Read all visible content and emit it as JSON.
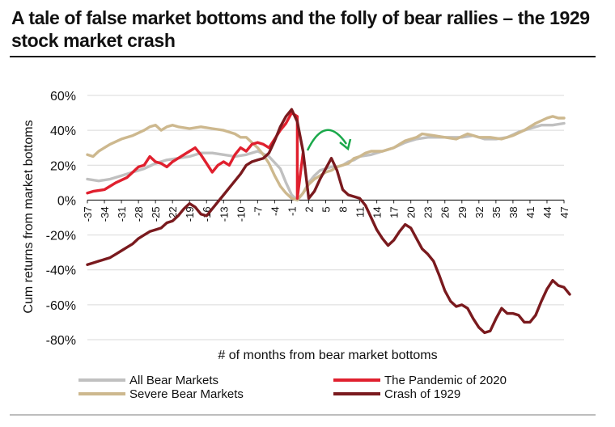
{
  "title": "A tale of false market bottoms and the folly of bear rallies – the 1929 stock market crash",
  "chart_data": {
    "type": "line",
    "title": "A tale of false market bottoms and the folly of bear rallies – the 1929 stock market crash",
    "xlabel": "# of months from bear market  bottoms",
    "ylabel": "Cum returns  from market bottoms",
    "xlim": [
      -37,
      47
    ],
    "ylim": [
      -80,
      60
    ],
    "x_ticks": [
      -37,
      -34,
      -31,
      -28,
      -25,
      -22,
      -19,
      -16,
      -13,
      -10,
      -7,
      -4,
      -1,
      2,
      5,
      8,
      11,
      14,
      17,
      20,
      23,
      26,
      29,
      32,
      35,
      38,
      41,
      44,
      47
    ],
    "y_ticks": [
      -80,
      -60,
      -40,
      -20,
      0,
      20,
      40,
      60
    ],
    "y_tick_labels": [
      "-80%",
      "-60%",
      "-40%",
      "-20%",
      "0%",
      "20%",
      "40%",
      "60%"
    ],
    "grid": "horizontal",
    "legend_position": "bottom",
    "series": [
      {
        "name": "All Bear Markets",
        "color": "#c0c0c0",
        "points": [
          [
            -37,
            12
          ],
          [
            -35,
            11
          ],
          [
            -33,
            12
          ],
          [
            -31,
            14
          ],
          [
            -29,
            16
          ],
          [
            -27,
            18
          ],
          [
            -25,
            21
          ],
          [
            -23,
            23
          ],
          [
            -21,
            24
          ],
          [
            -19,
            25
          ],
          [
            -17,
            27
          ],
          [
            -15,
            27
          ],
          [
            -13,
            26
          ],
          [
            -11,
            25
          ],
          [
            -9,
            26
          ],
          [
            -7,
            28
          ],
          [
            -5,
            25
          ],
          [
            -3,
            18
          ],
          [
            -2,
            10
          ],
          [
            -1,
            3
          ],
          [
            0,
            0
          ],
          [
            1,
            4
          ],
          [
            2,
            10
          ],
          [
            3,
            14
          ],
          [
            4,
            17
          ],
          [
            5,
            18
          ],
          [
            6,
            19
          ],
          [
            7,
            19
          ],
          [
            8,
            20
          ],
          [
            9,
            22
          ],
          [
            10,
            23
          ],
          [
            11,
            25
          ],
          [
            13,
            26
          ],
          [
            15,
            28
          ],
          [
            17,
            30
          ],
          [
            19,
            33
          ],
          [
            21,
            35
          ],
          [
            23,
            36
          ],
          [
            25,
            36
          ],
          [
            27,
            36
          ],
          [
            29,
            36
          ],
          [
            31,
            37
          ],
          [
            33,
            35
          ],
          [
            35,
            35
          ],
          [
            37,
            36
          ],
          [
            39,
            39
          ],
          [
            41,
            41
          ],
          [
            43,
            43
          ],
          [
            45,
            43
          ],
          [
            47,
            44
          ]
        ]
      },
      {
        "name": "Severe Bear Markets",
        "color": "#cdb88e",
        "points": [
          [
            -37,
            26
          ],
          [
            -36,
            25
          ],
          [
            -35,
            28
          ],
          [
            -33,
            32
          ],
          [
            -31,
            35
          ],
          [
            -29,
            37
          ],
          [
            -27,
            40
          ],
          [
            -26,
            42
          ],
          [
            -25,
            43
          ],
          [
            -24,
            40
          ],
          [
            -23,
            42
          ],
          [
            -22,
            43
          ],
          [
            -21,
            42
          ],
          [
            -19,
            41
          ],
          [
            -17,
            42
          ],
          [
            -15,
            41
          ],
          [
            -13,
            40
          ],
          [
            -11,
            38
          ],
          [
            -10,
            36
          ],
          [
            -9,
            36
          ],
          [
            -8,
            33
          ],
          [
            -7,
            30
          ],
          [
            -6,
            26
          ],
          [
            -5,
            21
          ],
          [
            -4,
            14
          ],
          [
            -3,
            8
          ],
          [
            -2,
            4
          ],
          [
            -1,
            1
          ],
          [
            0,
            0
          ],
          [
            1,
            4
          ],
          [
            2,
            9
          ],
          [
            3,
            12
          ],
          [
            4,
            14
          ],
          [
            5,
            16
          ],
          [
            6,
            17
          ],
          [
            7,
            19
          ],
          [
            8,
            20
          ],
          [
            9,
            21
          ],
          [
            10,
            24
          ],
          [
            11,
            25
          ],
          [
            12,
            27
          ],
          [
            13,
            28
          ],
          [
            15,
            28
          ],
          [
            17,
            30
          ],
          [
            19,
            34
          ],
          [
            21,
            36
          ],
          [
            22,
            38
          ],
          [
            24,
            37
          ],
          [
            26,
            36
          ],
          [
            28,
            35
          ],
          [
            30,
            38
          ],
          [
            32,
            36
          ],
          [
            34,
            36
          ],
          [
            36,
            35
          ],
          [
            38,
            37
          ],
          [
            40,
            40
          ],
          [
            42,
            44
          ],
          [
            44,
            47
          ],
          [
            45,
            48
          ],
          [
            46,
            47
          ],
          [
            47,
            47
          ]
        ]
      },
      {
        "name": "The Pandemic of 2020",
        "color": "#e0202e",
        "points": [
          [
            -37,
            4
          ],
          [
            -36,
            5
          ],
          [
            -34,
            6
          ],
          [
            -32,
            10
          ],
          [
            -30,
            13
          ],
          [
            -29,
            16
          ],
          [
            -28,
            19
          ],
          [
            -27,
            20
          ],
          [
            -26,
            25
          ],
          [
            -25,
            22
          ],
          [
            -24,
            21
          ],
          [
            -23,
            19
          ],
          [
            -22,
            22
          ],
          [
            -21,
            24
          ],
          [
            -20,
            26
          ],
          [
            -19,
            28
          ],
          [
            -18,
            30
          ],
          [
            -17,
            26
          ],
          [
            -16,
            21
          ],
          [
            -15,
            16
          ],
          [
            -14,
            20
          ],
          [
            -13,
            22
          ],
          [
            -12,
            20
          ],
          [
            -11,
            26
          ],
          [
            -10,
            30
          ],
          [
            -9,
            28
          ],
          [
            -8,
            32
          ],
          [
            -7,
            33
          ],
          [
            -6,
            32
          ],
          [
            -5,
            30
          ],
          [
            -4,
            35
          ],
          [
            -3,
            40
          ],
          [
            -2,
            44
          ],
          [
            -1,
            50
          ],
          [
            0,
            48
          ],
          [
            0,
            1
          ],
          [
            1,
            27
          ]
        ]
      },
      {
        "name": "Crash of 1929",
        "color": "#7a1a1e",
        "points": [
          [
            -37,
            -37
          ],
          [
            -36,
            -36
          ],
          [
            -35,
            -35
          ],
          [
            -34,
            -34
          ],
          [
            -33,
            -33
          ],
          [
            -32,
            -31
          ],
          [
            -31,
            -29
          ],
          [
            -30,
            -27
          ],
          [
            -29,
            -25
          ],
          [
            -28,
            -22
          ],
          [
            -27,
            -20
          ],
          [
            -26,
            -18
          ],
          [
            -25,
            -17
          ],
          [
            -24,
            -16
          ],
          [
            -23,
            -13
          ],
          [
            -22,
            -12
          ],
          [
            -21,
            -9
          ],
          [
            -20,
            -5
          ],
          [
            -19,
            -2
          ],
          [
            -18,
            -4
          ],
          [
            -17,
            -8
          ],
          [
            -16,
            -9
          ],
          [
            -15,
            -5
          ],
          [
            -14,
            -1
          ],
          [
            -13,
            3
          ],
          [
            -12,
            7
          ],
          [
            -11,
            11
          ],
          [
            -10,
            15
          ],
          [
            -9,
            20
          ],
          [
            -8,
            22
          ],
          [
            -7,
            23
          ],
          [
            -6,
            24
          ],
          [
            -5,
            27
          ],
          [
            -4,
            34
          ],
          [
            -3,
            42
          ],
          [
            -2,
            48
          ],
          [
            -1,
            52
          ],
          [
            0,
            45
          ],
          [
            1,
            28
          ],
          [
            2,
            1
          ],
          [
            3,
            5
          ],
          [
            4,
            12
          ],
          [
            5,
            18
          ],
          [
            6,
            24
          ],
          [
            7,
            17
          ],
          [
            8,
            6
          ],
          [
            9,
            3
          ],
          [
            10,
            2
          ],
          [
            11,
            1
          ],
          [
            12,
            -3
          ],
          [
            13,
            -10
          ],
          [
            14,
            -17
          ],
          [
            15,
            -22
          ],
          [
            16,
            -26
          ],
          [
            17,
            -23
          ],
          [
            18,
            -18
          ],
          [
            19,
            -14
          ],
          [
            20,
            -16
          ],
          [
            21,
            -22
          ],
          [
            22,
            -28
          ],
          [
            23,
            -31
          ],
          [
            24,
            -35
          ],
          [
            25,
            -43
          ],
          [
            26,
            -52
          ],
          [
            27,
            -58
          ],
          [
            28,
            -61
          ],
          [
            29,
            -60
          ],
          [
            30,
            -62
          ],
          [
            31,
            -68
          ],
          [
            32,
            -73
          ],
          [
            33,
            -76
          ],
          [
            34,
            -75
          ],
          [
            35,
            -68
          ],
          [
            36,
            -62
          ],
          [
            37,
            -65
          ],
          [
            38,
            -65
          ],
          [
            39,
            -66
          ],
          [
            40,
            -70
          ],
          [
            41,
            -70
          ],
          [
            42,
            -66
          ],
          [
            43,
            -58
          ],
          [
            44,
            -51
          ],
          [
            45,
            -46
          ],
          [
            46,
            -49
          ],
          [
            47,
            -50
          ],
          [
            48,
            -54
          ]
        ]
      }
    ]
  }
}
